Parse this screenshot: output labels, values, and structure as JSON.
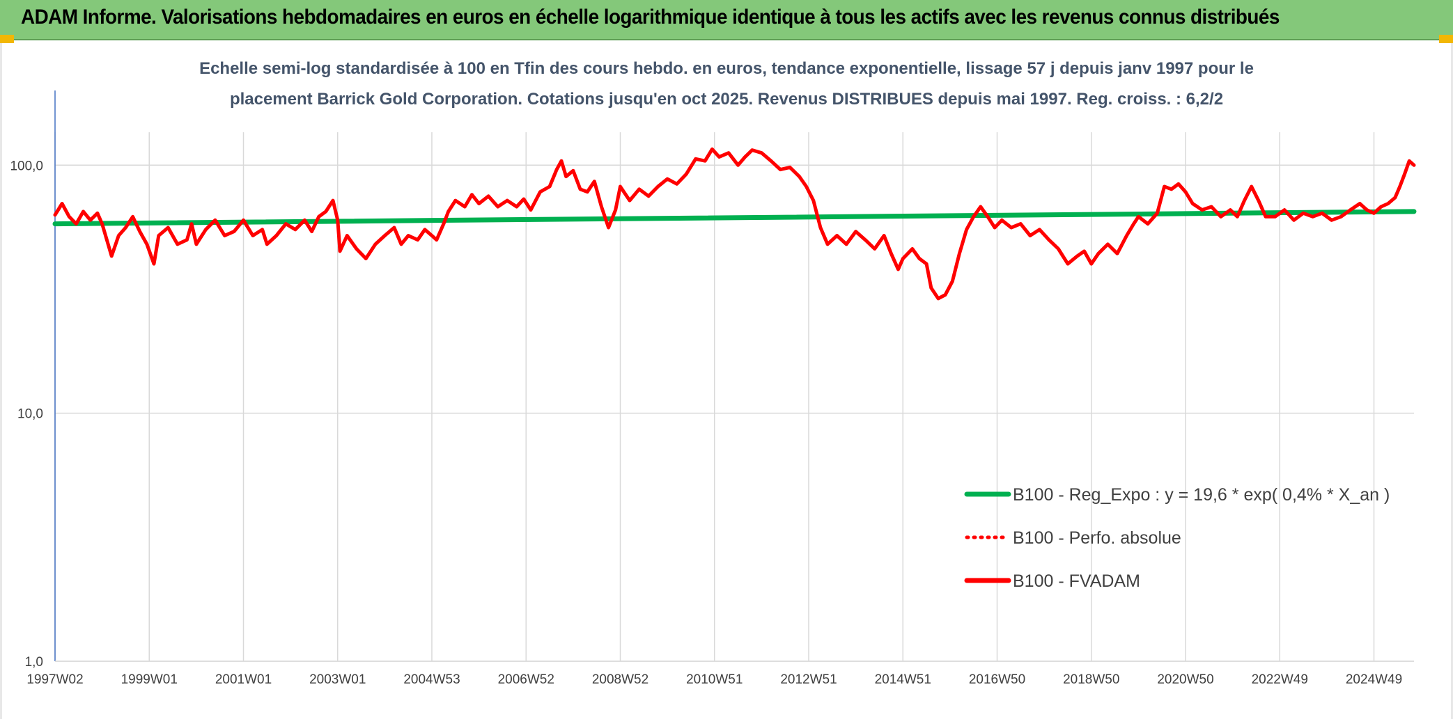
{
  "banner": {
    "title": "ADAM Informe. Valorisations hebdomadaires en euros en échelle logarithmique identique à tous les actifs avec les revenus connus distribués",
    "background": "#84c87a"
  },
  "chart_data": {
    "type": "line",
    "y_scale": "log",
    "subtitle_lines": [
      "Echelle semi-log standardisée à 100 en Tfin des cours hebdo. en euros, tendance exponentielle, lissage 57 j depuis janv 1997 pour le",
      "placement Barrick Gold Corporation. Cotations jusqu'en oct 2025. Revenus DISTRIBUES depuis mai 1997. Reg. croiss. : 6,2/2"
    ],
    "ylim": [
      1,
      200
    ],
    "y_ticks": [
      {
        "value": 1,
        "label": "1,0"
      },
      {
        "value": 10,
        "label": "10,0"
      },
      {
        "value": 100,
        "label": "100,0"
      }
    ],
    "x_range": [
      1997.0,
      2025.85
    ],
    "x_ticks": [
      {
        "x": 1997.0,
        "label": "1997W02"
      },
      {
        "x": 1999.0,
        "label": "1999W01"
      },
      {
        "x": 2001.0,
        "label": "2001W01"
      },
      {
        "x": 2003.0,
        "label": "2003W01"
      },
      {
        "x": 2005.0,
        "label": "2004W53"
      },
      {
        "x": 2007.0,
        "label": "2006W52"
      },
      {
        "x": 2009.0,
        "label": "2008W52"
      },
      {
        "x": 2011.0,
        "label": "2010W51"
      },
      {
        "x": 2013.0,
        "label": "2012W51"
      },
      {
        "x": 2015.0,
        "label": "2014W51"
      },
      {
        "x": 2017.0,
        "label": "2016W50"
      },
      {
        "x": 2019.0,
        "label": "2018W50"
      },
      {
        "x": 2021.0,
        "label": "2020W50"
      },
      {
        "x": 2023.0,
        "label": "2022W49"
      },
      {
        "x": 2025.0,
        "label": "2024W49"
      }
    ],
    "series": [
      {
        "name": "B100 - Reg_Expo : y = 19,6 * exp( 0,4% *  X_an )",
        "color": "#00b050",
        "style": "solid",
        "points": [
          [
            1997.0,
            58
          ],
          [
            2025.85,
            65
          ]
        ]
      },
      {
        "name": "B100 - Perfo. absolue",
        "color": "#ff0000",
        "style": "dotted",
        "points": []
      },
      {
        "name": "B100 - FVADAM",
        "color": "#ff0000",
        "style": "solid",
        "points": [
          [
            1997.0,
            63
          ],
          [
            1997.15,
            70
          ],
          [
            1997.3,
            62
          ],
          [
            1997.45,
            58
          ],
          [
            1997.6,
            65
          ],
          [
            1997.75,
            60
          ],
          [
            1997.9,
            64
          ],
          [
            1998.0,
            58
          ],
          [
            1998.2,
            43
          ],
          [
            1998.35,
            52
          ],
          [
            1998.5,
            56
          ],
          [
            1998.65,
            62
          ],
          [
            1998.8,
            54
          ],
          [
            1998.95,
            48
          ],
          [
            1999.1,
            40
          ],
          [
            1999.2,
            52
          ],
          [
            1999.4,
            56
          ],
          [
            1999.6,
            48
          ],
          [
            1999.8,
            50
          ],
          [
            1999.9,
            58
          ],
          [
            2000.0,
            48
          ],
          [
            2000.2,
            55
          ],
          [
            2000.4,
            60
          ],
          [
            2000.6,
            52
          ],
          [
            2000.8,
            54
          ],
          [
            2001.0,
            60
          ],
          [
            2001.2,
            52
          ],
          [
            2001.4,
            55
          ],
          [
            2001.5,
            48
          ],
          [
            2001.7,
            52
          ],
          [
            2001.9,
            58
          ],
          [
            2002.1,
            55
          ],
          [
            2002.3,
            60
          ],
          [
            2002.45,
            54
          ],
          [
            2002.6,
            62
          ],
          [
            2002.75,
            65
          ],
          [
            2002.9,
            72
          ],
          [
            2003.0,
            60
          ],
          [
            2003.05,
            45
          ],
          [
            2003.2,
            52
          ],
          [
            2003.4,
            46
          ],
          [
            2003.6,
            42
          ],
          [
            2003.8,
            48
          ],
          [
            2004.0,
            52
          ],
          [
            2004.2,
            56
          ],
          [
            2004.35,
            48
          ],
          [
            2004.5,
            52
          ],
          [
            2004.7,
            50
          ],
          [
            2004.85,
            55
          ],
          [
            2005.0,
            52
          ],
          [
            2005.1,
            50
          ],
          [
            2005.25,
            58
          ],
          [
            2005.35,
            65
          ],
          [
            2005.5,
            72
          ],
          [
            2005.7,
            68
          ],
          [
            2005.85,
            76
          ],
          [
            2006.0,
            70
          ],
          [
            2006.2,
            75
          ],
          [
            2006.4,
            68
          ],
          [
            2006.6,
            72
          ],
          [
            2006.8,
            68
          ],
          [
            2006.95,
            73
          ],
          [
            2007.1,
            66
          ],
          [
            2007.3,
            78
          ],
          [
            2007.5,
            82
          ],
          [
            2007.65,
            96
          ],
          [
            2007.75,
            104
          ],
          [
            2007.85,
            90
          ],
          [
            2008.0,
            95
          ],
          [
            2008.15,
            80
          ],
          [
            2008.3,
            78
          ],
          [
            2008.45,
            86
          ],
          [
            2008.6,
            68
          ],
          [
            2008.75,
            56
          ],
          [
            2008.9,
            66
          ],
          [
            2009.0,
            82
          ],
          [
            2009.2,
            72
          ],
          [
            2009.4,
            80
          ],
          [
            2009.6,
            75
          ],
          [
            2009.8,
            82
          ],
          [
            2010.0,
            88
          ],
          [
            2010.2,
            84
          ],
          [
            2010.4,
            92
          ],
          [
            2010.6,
            106
          ],
          [
            2010.8,
            104
          ],
          [
            2010.95,
            116
          ],
          [
            2011.1,
            108
          ],
          [
            2011.3,
            112
          ],
          [
            2011.5,
            100
          ],
          [
            2011.65,
            108
          ],
          [
            2011.8,
            115
          ],
          [
            2012.0,
            112
          ],
          [
            2012.2,
            104
          ],
          [
            2012.4,
            96
          ],
          [
            2012.6,
            98
          ],
          [
            2012.8,
            90
          ],
          [
            2012.95,
            82
          ],
          [
            2013.1,
            72
          ],
          [
            2013.25,
            56
          ],
          [
            2013.4,
            48
          ],
          [
            2013.6,
            52
          ],
          [
            2013.8,
            48
          ],
          [
            2014.0,
            54
          ],
          [
            2014.2,
            50
          ],
          [
            2014.4,
            46
          ],
          [
            2014.6,
            52
          ],
          [
            2014.75,
            44
          ],
          [
            2014.9,
            38
          ],
          [
            2015.0,
            42
          ],
          [
            2015.2,
            46
          ],
          [
            2015.35,
            42
          ],
          [
            2015.5,
            40
          ],
          [
            2015.6,
            32
          ],
          [
            2015.75,
            29
          ],
          [
            2015.9,
            30
          ],
          [
            2016.05,
            34
          ],
          [
            2016.2,
            44
          ],
          [
            2016.35,
            55
          ],
          [
            2016.5,
            62
          ],
          [
            2016.65,
            68
          ],
          [
            2016.8,
            62
          ],
          [
            2016.95,
            56
          ],
          [
            2017.1,
            60
          ],
          [
            2017.3,
            56
          ],
          [
            2017.5,
            58
          ],
          [
            2017.7,
            52
          ],
          [
            2017.9,
            55
          ],
          [
            2018.1,
            50
          ],
          [
            2018.3,
            46
          ],
          [
            2018.5,
            40
          ],
          [
            2018.7,
            43
          ],
          [
            2018.85,
            45
          ],
          [
            2019.0,
            40
          ],
          [
            2019.15,
            44
          ],
          [
            2019.35,
            48
          ],
          [
            2019.55,
            44
          ],
          [
            2019.75,
            52
          ],
          [
            2019.9,
            58
          ],
          [
            2020.0,
            62
          ],
          [
            2020.2,
            58
          ],
          [
            2020.4,
            64
          ],
          [
            2020.55,
            82
          ],
          [
            2020.7,
            80
          ],
          [
            2020.85,
            84
          ],
          [
            2021.0,
            78
          ],
          [
            2021.15,
            70
          ],
          [
            2021.35,
            66
          ],
          [
            2021.55,
            68
          ],
          [
            2021.75,
            62
          ],
          [
            2021.95,
            66
          ],
          [
            2022.1,
            62
          ],
          [
            2022.25,
            72
          ],
          [
            2022.4,
            82
          ],
          [
            2022.55,
            72
          ],
          [
            2022.7,
            62
          ],
          [
            2022.9,
            62
          ],
          [
            2023.1,
            66
          ],
          [
            2023.3,
            60
          ],
          [
            2023.5,
            64
          ],
          [
            2023.7,
            62
          ],
          [
            2023.9,
            64
          ],
          [
            2024.1,
            60
          ],
          [
            2024.3,
            62
          ],
          [
            2024.5,
            66
          ],
          [
            2024.7,
            70
          ],
          [
            2024.85,
            66
          ],
          [
            2025.0,
            64
          ],
          [
            2025.15,
            68
          ],
          [
            2025.3,
            70
          ],
          [
            2025.45,
            74
          ],
          [
            2025.55,
            82
          ],
          [
            2025.65,
            92
          ],
          [
            2025.75,
            104
          ],
          [
            2025.85,
            100
          ]
        ]
      }
    ],
    "legend": {
      "position": "lower-right",
      "entries": [
        "B100 - Reg_Expo : y = 19,6 * exp( 0,4% *  X_an )",
        "B100 - Perfo. absolue",
        "B100 - FVADAM"
      ]
    },
    "grid": true
  },
  "colors": {
    "grid": "#d9d9d9",
    "axis": "#4472c4",
    "trend": "#00b050",
    "fvadam": "#ff0000"
  }
}
